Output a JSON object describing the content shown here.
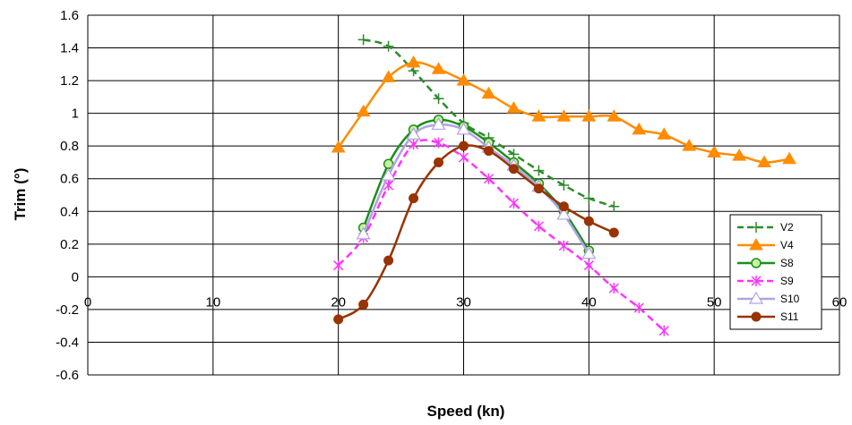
{
  "chart_data": {
    "type": "line",
    "title": "",
    "xlabel": "Speed  (kn)",
    "ylabel": "Trim  (°)",
    "xlim": [
      0,
      60
    ],
    "ylim": [
      -0.6,
      1.6
    ],
    "x_ticks": [
      "0",
      "10",
      "20",
      "30",
      "40",
      "50",
      "60"
    ],
    "y_ticks": [
      "1.6",
      "1.4",
      "1.2",
      "1",
      "0.8",
      "0.6",
      "0.4",
      "0.2",
      "0",
      "-0.2",
      "-0.4",
      "-0.6"
    ],
    "grid": true,
    "legend_position": "right",
    "series": [
      {
        "name": "V2",
        "color": "#2e8b2e",
        "marker": "plus",
        "dash": true,
        "x": [
          22,
          24,
          26,
          28,
          30,
          32,
          34,
          36,
          38,
          40,
          42
        ],
        "y": [
          1.45,
          1.41,
          1.26,
          1.09,
          0.94,
          0.85,
          0.75,
          0.65,
          0.56,
          0.48,
          0.43
        ]
      },
      {
        "name": "V4",
        "color": "#ff8c00",
        "marker": "triangle",
        "dash": false,
        "x": [
          20,
          22,
          24,
          26,
          28,
          30,
          32,
          34,
          36,
          38,
          40,
          42,
          44,
          46,
          48,
          50,
          52,
          54,
          56
        ],
        "y": [
          0.79,
          1.01,
          1.22,
          1.31,
          1.27,
          1.2,
          1.12,
          1.03,
          0.98,
          0.98,
          0.98,
          0.98,
          0.9,
          0.87,
          0.8,
          0.76,
          0.74,
          0.7,
          0.72
        ]
      },
      {
        "name": "S8",
        "color": "#1a8f1a",
        "marker": "circle-open",
        "dash": false,
        "x": [
          22,
          24,
          26,
          28,
          30,
          32,
          34,
          36,
          38,
          40
        ],
        "y": [
          0.3,
          0.69,
          0.9,
          0.96,
          0.92,
          0.82,
          0.7,
          0.57,
          0.4,
          0.16
        ]
      },
      {
        "name": "S9",
        "color": "#ff33ff",
        "marker": "star",
        "dash": true,
        "x": [
          20,
          22,
          24,
          26,
          28,
          30,
          32,
          34,
          36,
          38,
          40,
          42,
          44,
          46
        ],
        "y": [
          0.07,
          0.24,
          0.56,
          0.81,
          0.82,
          0.73,
          0.6,
          0.45,
          0.31,
          0.19,
          0.07,
          -0.07,
          -0.19,
          -0.33
        ]
      },
      {
        "name": "S10",
        "color": "#b3a2e3",
        "marker": "triangle-open",
        "dash": false,
        "x": [
          22,
          24,
          26,
          28,
          30,
          32,
          34,
          36,
          38,
          40
        ],
        "y": [
          0.26,
          0.62,
          0.87,
          0.93,
          0.9,
          0.79,
          0.68,
          0.55,
          0.38,
          0.14
        ]
      },
      {
        "name": "S11",
        "color": "#993300",
        "marker": "circle",
        "dash": false,
        "x": [
          20,
          22,
          24,
          26,
          28,
          30,
          32,
          34,
          36,
          38,
          40,
          42
        ],
        "y": [
          -0.26,
          -0.17,
          0.1,
          0.48,
          0.7,
          0.8,
          0.77,
          0.66,
          0.54,
          0.43,
          0.34,
          0.27
        ]
      }
    ]
  }
}
